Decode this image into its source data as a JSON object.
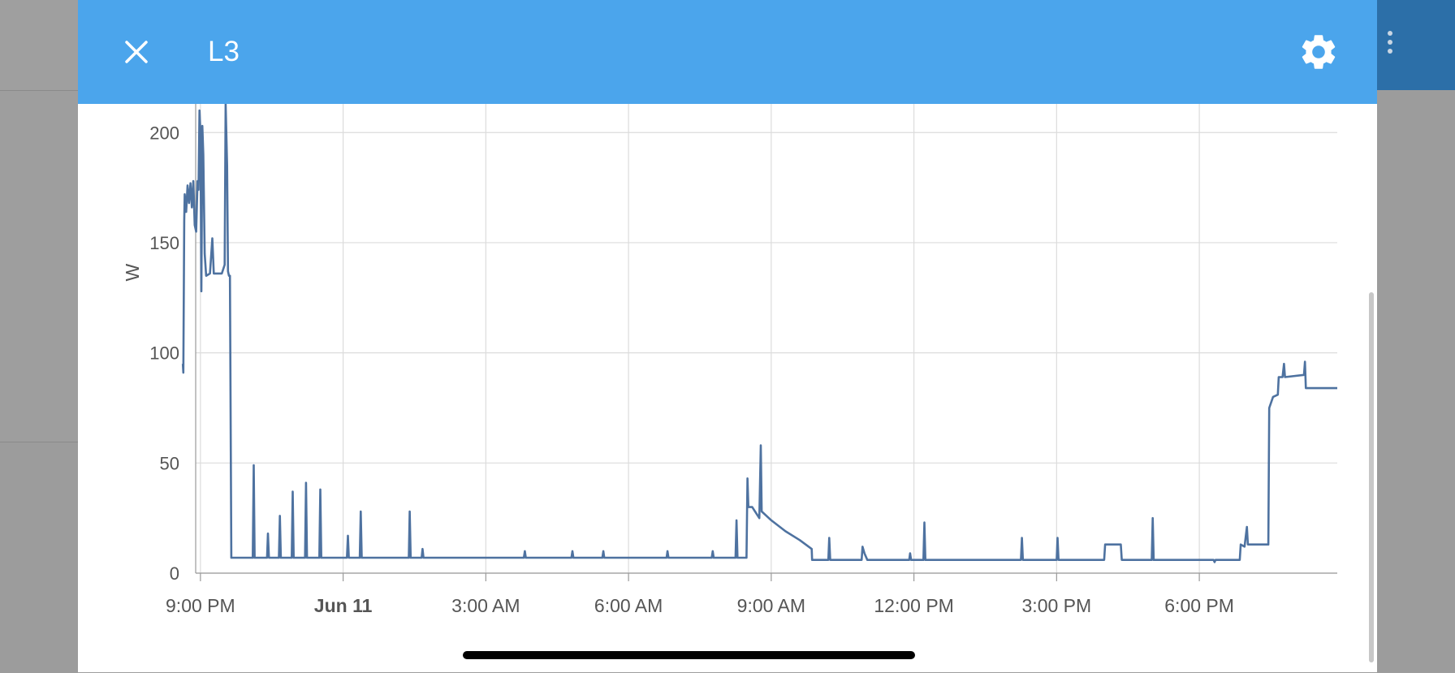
{
  "dialog": {
    "title": "L3",
    "close_icon": "close-icon",
    "settings_icon": "gear-icon"
  },
  "page": {
    "overflow_icon": "more-vertical-icon"
  },
  "colors": {
    "header": "#4ba5ec",
    "series": "#4e72a0",
    "grid": "#dcdcdc"
  },
  "chart_data": {
    "type": "line",
    "title": "",
    "xlabel": "",
    "ylabel": "W",
    "ylim": [
      0,
      213
    ],
    "xlim_hours": [
      -3.1,
      20.9
    ],
    "grid": true,
    "y_ticks": [
      {
        "value": 0,
        "label": "0"
      },
      {
        "value": 50,
        "label": "50"
      },
      {
        "value": 100,
        "label": "100"
      },
      {
        "value": 150,
        "label": "150"
      },
      {
        "value": 200,
        "label": "200"
      }
    ],
    "x_ticks": [
      {
        "value": -3,
        "label": "9:00 PM",
        "bold": false
      },
      {
        "value": 0,
        "label": "Jun 11",
        "bold": true
      },
      {
        "value": 3,
        "label": "3:00 AM",
        "bold": false
      },
      {
        "value": 6,
        "label": "6:00 AM",
        "bold": false
      },
      {
        "value": 9,
        "label": "9:00 AM",
        "bold": false
      },
      {
        "value": 12,
        "label": "12:00 PM",
        "bold": false
      },
      {
        "value": 15,
        "label": "3:00 PM",
        "bold": false
      },
      {
        "value": 18,
        "label": "6:00 PM",
        "bold": false
      }
    ],
    "series": [
      {
        "points": [
          [
            -3.37,
            95
          ],
          [
            -3.36,
            91
          ],
          [
            -3.34,
            160
          ],
          [
            -3.33,
            172
          ],
          [
            -3.3,
            164
          ],
          [
            -3.27,
            176
          ],
          [
            -3.24,
            168
          ],
          [
            -3.21,
            177
          ],
          [
            -3.18,
            166
          ],
          [
            -3.15,
            178
          ],
          [
            -3.12,
            158
          ],
          [
            -3.09,
            155
          ],
          [
            -3.06,
            178
          ],
          [
            -3.04,
            174
          ],
          [
            -3.02,
            210
          ],
          [
            -3.0,
            200
          ],
          [
            -2.98,
            128
          ],
          [
            -2.96,
            203
          ],
          [
            -2.94,
            190
          ],
          [
            -2.91,
            145
          ],
          [
            -2.88,
            135
          ],
          [
            -2.8,
            136
          ],
          [
            -2.75,
            152
          ],
          [
            -2.72,
            136
          ],
          [
            -2.55,
            136
          ],
          [
            -2.49,
            140
          ],
          [
            -2.47,
            215
          ],
          [
            -2.44,
            185
          ],
          [
            -2.42,
            137
          ],
          [
            -2.4,
            135
          ],
          [
            -2.38,
            135
          ],
          [
            -2.35,
            7
          ],
          [
            -1.9,
            7
          ],
          [
            -1.88,
            49
          ],
          [
            -1.86,
            7
          ],
          [
            -1.6,
            7
          ],
          [
            -1.58,
            18
          ],
          [
            -1.56,
            7
          ],
          [
            -1.35,
            7
          ],
          [
            -1.33,
            26
          ],
          [
            -1.31,
            7
          ],
          [
            -1.08,
            7
          ],
          [
            -1.06,
            37
          ],
          [
            -1.04,
            7
          ],
          [
            -0.8,
            7
          ],
          [
            -0.78,
            41
          ],
          [
            -0.76,
            7
          ],
          [
            -0.5,
            7
          ],
          [
            -0.48,
            38
          ],
          [
            -0.46,
            7
          ],
          [
            0.08,
            7
          ],
          [
            0.1,
            17
          ],
          [
            0.12,
            7
          ],
          [
            0.35,
            7
          ],
          [
            0.37,
            28
          ],
          [
            0.39,
            7
          ],
          [
            1.38,
            7
          ],
          [
            1.4,
            28
          ],
          [
            1.42,
            7
          ],
          [
            1.65,
            7
          ],
          [
            1.67,
            11
          ],
          [
            1.69,
            7
          ],
          [
            2.8,
            7
          ],
          [
            3.8,
            7
          ],
          [
            3.82,
            10
          ],
          [
            3.84,
            7
          ],
          [
            4.8,
            7
          ],
          [
            4.82,
            10
          ],
          [
            4.84,
            7
          ],
          [
            5.45,
            7
          ],
          [
            5.47,
            10
          ],
          [
            5.49,
            7
          ],
          [
            6.8,
            7
          ],
          [
            6.82,
            10
          ],
          [
            6.84,
            7
          ],
          [
            7.75,
            7
          ],
          [
            7.77,
            10
          ],
          [
            7.79,
            7
          ],
          [
            8.05,
            7
          ],
          [
            8.25,
            7
          ],
          [
            8.27,
            24
          ],
          [
            8.29,
            7
          ],
          [
            8.48,
            7
          ],
          [
            8.5,
            43
          ],
          [
            8.52,
            30
          ],
          [
            8.6,
            30
          ],
          [
            8.75,
            25
          ],
          [
            8.78,
            58
          ],
          [
            8.8,
            28
          ],
          [
            9.0,
            24
          ],
          [
            9.3,
            19
          ],
          [
            9.6,
            15
          ],
          [
            9.85,
            11
          ],
          [
            9.86,
            6
          ],
          [
            10.2,
            6
          ],
          [
            10.22,
            16
          ],
          [
            10.24,
            6
          ],
          [
            10.9,
            6
          ],
          [
            10.92,
            12
          ],
          [
            10.96,
            9
          ],
          [
            11.02,
            6
          ],
          [
            11.9,
            6
          ],
          [
            11.92,
            9
          ],
          [
            11.94,
            6
          ],
          [
            12.2,
            6
          ],
          [
            12.22,
            23
          ],
          [
            12.24,
            6
          ],
          [
            13.0,
            6
          ],
          [
            14.25,
            6
          ],
          [
            14.27,
            16
          ],
          [
            14.29,
            6
          ],
          [
            15.0,
            6
          ],
          [
            15.02,
            16
          ],
          [
            15.04,
            6
          ],
          [
            16.0,
            6
          ],
          [
            16.02,
            13
          ],
          [
            16.35,
            13
          ],
          [
            16.37,
            6
          ],
          [
            17.0,
            6
          ],
          [
            17.02,
            25
          ],
          [
            17.04,
            6
          ],
          [
            18.3,
            6
          ],
          [
            18.32,
            5
          ],
          [
            18.34,
            6
          ],
          [
            18.85,
            6
          ],
          [
            18.87,
            13
          ],
          [
            18.95,
            12
          ],
          [
            19.0,
            21
          ],
          [
            19.02,
            13
          ],
          [
            19.45,
            13
          ],
          [
            19.47,
            75
          ],
          [
            19.55,
            80
          ],
          [
            19.65,
            81
          ],
          [
            19.67,
            89
          ],
          [
            19.75,
            89
          ],
          [
            19.78,
            95
          ],
          [
            19.8,
            89
          ],
          [
            20.2,
            90
          ],
          [
            20.22,
            96
          ],
          [
            20.24,
            84
          ],
          [
            20.9,
            84
          ]
        ]
      }
    ]
  }
}
